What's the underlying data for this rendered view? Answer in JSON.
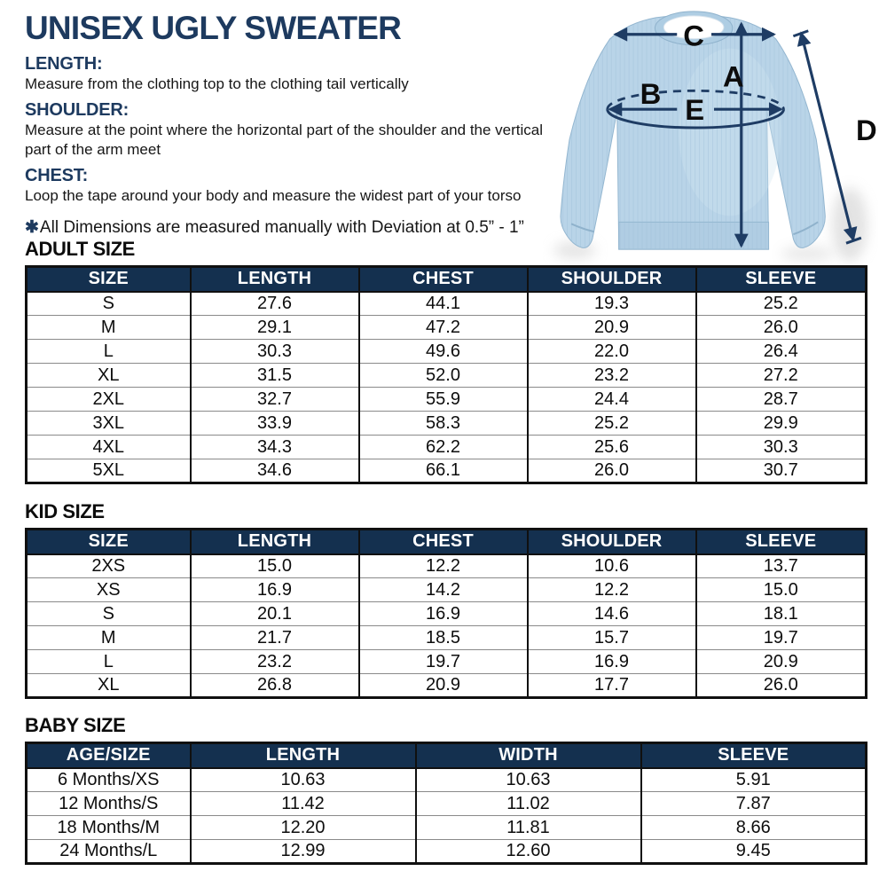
{
  "title": "UNISEX UGLY SWEATER",
  "instructions": [
    {
      "label": "LENGTH:",
      "text": "Measure from the clothing top to the clothing tail vertically"
    },
    {
      "label": "SHOULDER:",
      "text": "Measure at the point where the horizontal part of the shoulder and the vertical\npart of the arm meet"
    },
    {
      "label": "CHEST:",
      "text": "Loop the tape around your body and measure the widest part of your torso"
    }
  ],
  "note": {
    "symbol": "✱",
    "text": "All Dimensions are measured manually with Deviation at 0.5” - 1”"
  },
  "diagram": {
    "labels": {
      "length": "A",
      "chest": "B",
      "shoulder": "C",
      "sleeve": "D",
      "width": "E"
    },
    "sweater_color": "#b9d4e8",
    "arrow_color": "#1e3c64"
  },
  "tables": [
    {
      "heading": "ADULT SIZE",
      "columns": [
        "SIZE",
        "LENGTH",
        "CHEST",
        "SHOULDER",
        "SLEEVE"
      ],
      "rows": [
        [
          "S",
          "27.6",
          "44.1",
          "19.3",
          "25.2"
        ],
        [
          "M",
          "29.1",
          "47.2",
          "20.9",
          "26.0"
        ],
        [
          "L",
          "30.3",
          "49.6",
          "22.0",
          "26.4"
        ],
        [
          "XL",
          "31.5",
          "52.0",
          "23.2",
          "27.2"
        ],
        [
          "2XL",
          "32.7",
          "55.9",
          "24.4",
          "28.7"
        ],
        [
          "3XL",
          "33.9",
          "58.3",
          "25.2",
          "29.9"
        ],
        [
          "4XL",
          "34.3",
          "62.2",
          "25.6",
          "30.3"
        ],
        [
          "5XL",
          "34.6",
          "66.1",
          "26.0",
          "30.7"
        ]
      ]
    },
    {
      "heading": "KID SIZE",
      "columns": [
        "SIZE",
        "LENGTH",
        "CHEST",
        "SHOULDER",
        "SLEEVE"
      ],
      "rows": [
        [
          "2XS",
          "15.0",
          "12.2",
          "10.6",
          "13.7"
        ],
        [
          "XS",
          "16.9",
          "14.2",
          "12.2",
          "15.0"
        ],
        [
          "S",
          "20.1",
          "16.9",
          "14.6",
          "18.1"
        ],
        [
          "M",
          "21.7",
          "18.5",
          "15.7",
          "19.7"
        ],
        [
          "L",
          "23.2",
          "19.7",
          "16.9",
          "20.9"
        ],
        [
          "XL",
          "26.8",
          "20.9",
          "17.7",
          "26.0"
        ]
      ]
    },
    {
      "heading": "BABY SIZE",
      "columns": [
        "AGE/SIZE",
        "LENGTH",
        "WIDTH",
        "SLEEVE"
      ],
      "rows": [
        [
          "6 Months/XS",
          "10.63",
          "10.63",
          "5.91"
        ],
        [
          "12 Months/S",
          "11.42",
          "11.02",
          "7.87"
        ],
        [
          "18 Months/M",
          "12.20",
          "11.81",
          "8.66"
        ],
        [
          "24 Months/L",
          "12.99",
          "12.60",
          "9.45"
        ]
      ]
    }
  ],
  "colors": {
    "header_bg": "#14304f",
    "header_text": "#ffffff",
    "accent_navy": "#1d3a5f",
    "body_text": "#131313",
    "table_border": "#101010",
    "row_divider": "#8a8a8a"
  }
}
